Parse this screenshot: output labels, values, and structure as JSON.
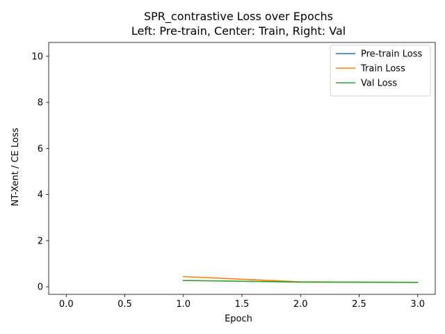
{
  "chart_data": {
    "type": "line",
    "title": "SPR_contrastive Loss over Epochs",
    "subtitle": "Left: Pre-train, Center: Train, Right: Val",
    "xlabel": "Epoch",
    "ylabel": "NT-Xent / CE Loss",
    "xlim": [
      -0.15,
      3.15
    ],
    "ylim": [
      -0.33,
      10.6
    ],
    "xticks": [
      0.0,
      0.5,
      1.0,
      1.5,
      2.0,
      2.5,
      3.0
    ],
    "xtick_labels": [
      "0.0",
      "0.5",
      "1.0",
      "1.5",
      "2.0",
      "2.5",
      "3.0"
    ],
    "yticks": [
      0,
      2,
      4,
      6,
      8,
      10
    ],
    "ytick_labels": [
      "0",
      "2",
      "4",
      "6",
      "8",
      "10"
    ],
    "grid": false,
    "legend_position": "top-right",
    "series": [
      {
        "name": "Pre-train Loss",
        "color": "#1f77b4",
        "x": [],
        "y": []
      },
      {
        "name": "Train Loss",
        "color": "#ff7f0e",
        "x": [
          1,
          2,
          3
        ],
        "y": [
          0.44,
          0.21,
          0.19
        ]
      },
      {
        "name": "Val Loss",
        "color": "#2ca02c",
        "x": [
          1,
          2,
          3
        ],
        "y": [
          0.27,
          0.2,
          0.19
        ]
      }
    ]
  }
}
